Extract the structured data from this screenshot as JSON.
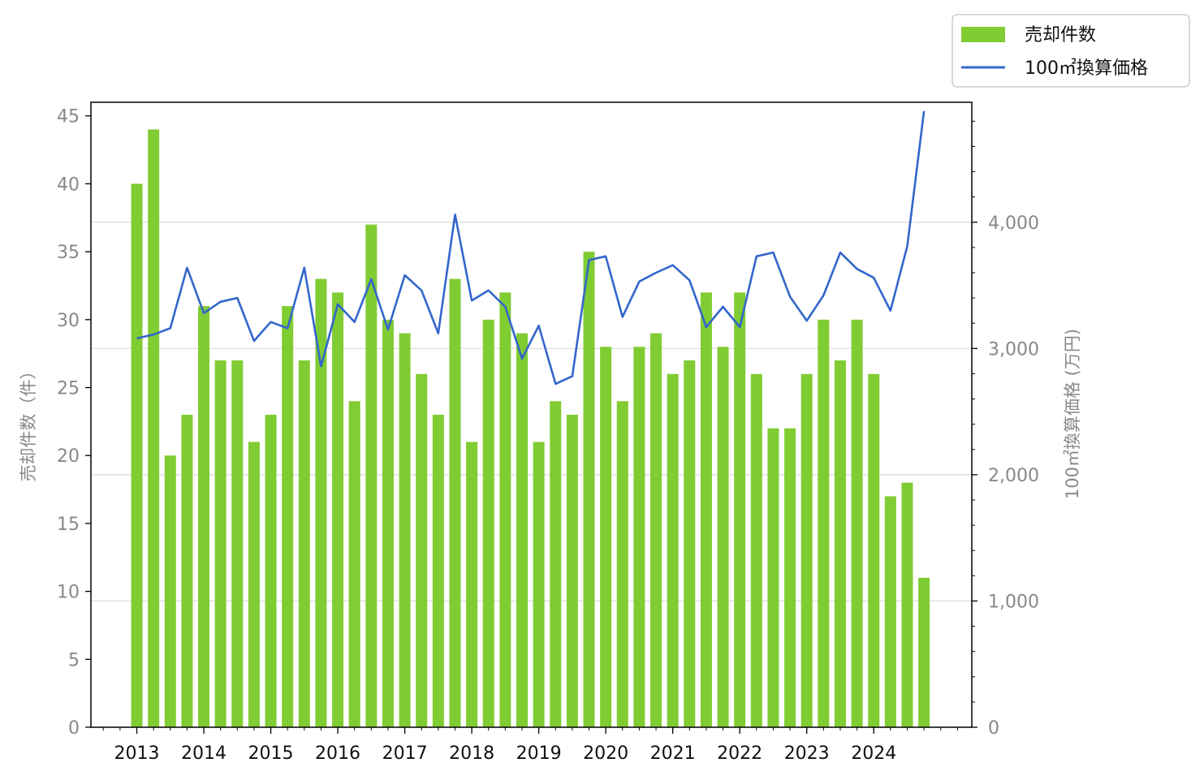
{
  "chart_data": {
    "type": "bar+line",
    "x_tick_labels": [
      "2013",
      "2014",
      "2015",
      "2016",
      "2017",
      "2018",
      "2019",
      "2020",
      "2021",
      "2022",
      "2023",
      "2024"
    ],
    "y_left": {
      "label": "売却件数（件）",
      "ticks": [
        "0",
        "5",
        "10",
        "15",
        "20",
        "25",
        "30",
        "35",
        "40",
        "45"
      ],
      "ylim": [
        0,
        46
      ]
    },
    "y_right": {
      "label": "100㎡換算価格 (万円)",
      "ticks": [
        "0",
        "1,000",
        "2,000",
        "3,000",
        "4,000"
      ],
      "ylim": [
        0,
        4950
      ]
    },
    "grid": "horizontal, right axis",
    "legend_position": "top-right, above plot",
    "series": [
      {
        "name": "売却件数",
        "kind": "bar",
        "axis": "left",
        "color": "#80cc33",
        "values": [
          40,
          44,
          20,
          23,
          31,
          27,
          27,
          21,
          23,
          31,
          27,
          33,
          32,
          24,
          37,
          30,
          29,
          26,
          23,
          33,
          21,
          30,
          32,
          29,
          21,
          24,
          23,
          35,
          28,
          24,
          28,
          29,
          26,
          27,
          32,
          28,
          32,
          26,
          22,
          22,
          26,
          30,
          27,
          30,
          26,
          17,
          18,
          11
        ]
      },
      {
        "name": "100㎡換算価格",
        "kind": "line",
        "axis": "right",
        "color": "#3366cc",
        "values": [
          3080,
          3110,
          3160,
          3640,
          3280,
          3370,
          3400,
          3060,
          3210,
          3160,
          3640,
          2860,
          3350,
          3210,
          3550,
          3150,
          3580,
          3460,
          3120,
          4060,
          3380,
          3460,
          3330,
          2920,
          3180,
          2720,
          2780,
          3700,
          3730,
          3250,
          3530,
          3600,
          3660,
          3540,
          3170,
          3330,
          3170,
          3730,
          3760,
          3410,
          3220,
          3420,
          3760,
          3630,
          3560,
          3300,
          3810,
          4880
        ]
      }
    ],
    "colors": {
      "bar": "#80cc33",
      "line": "#3366cc",
      "axis_text": "#888888",
      "grid": "#d9d9d9"
    }
  }
}
